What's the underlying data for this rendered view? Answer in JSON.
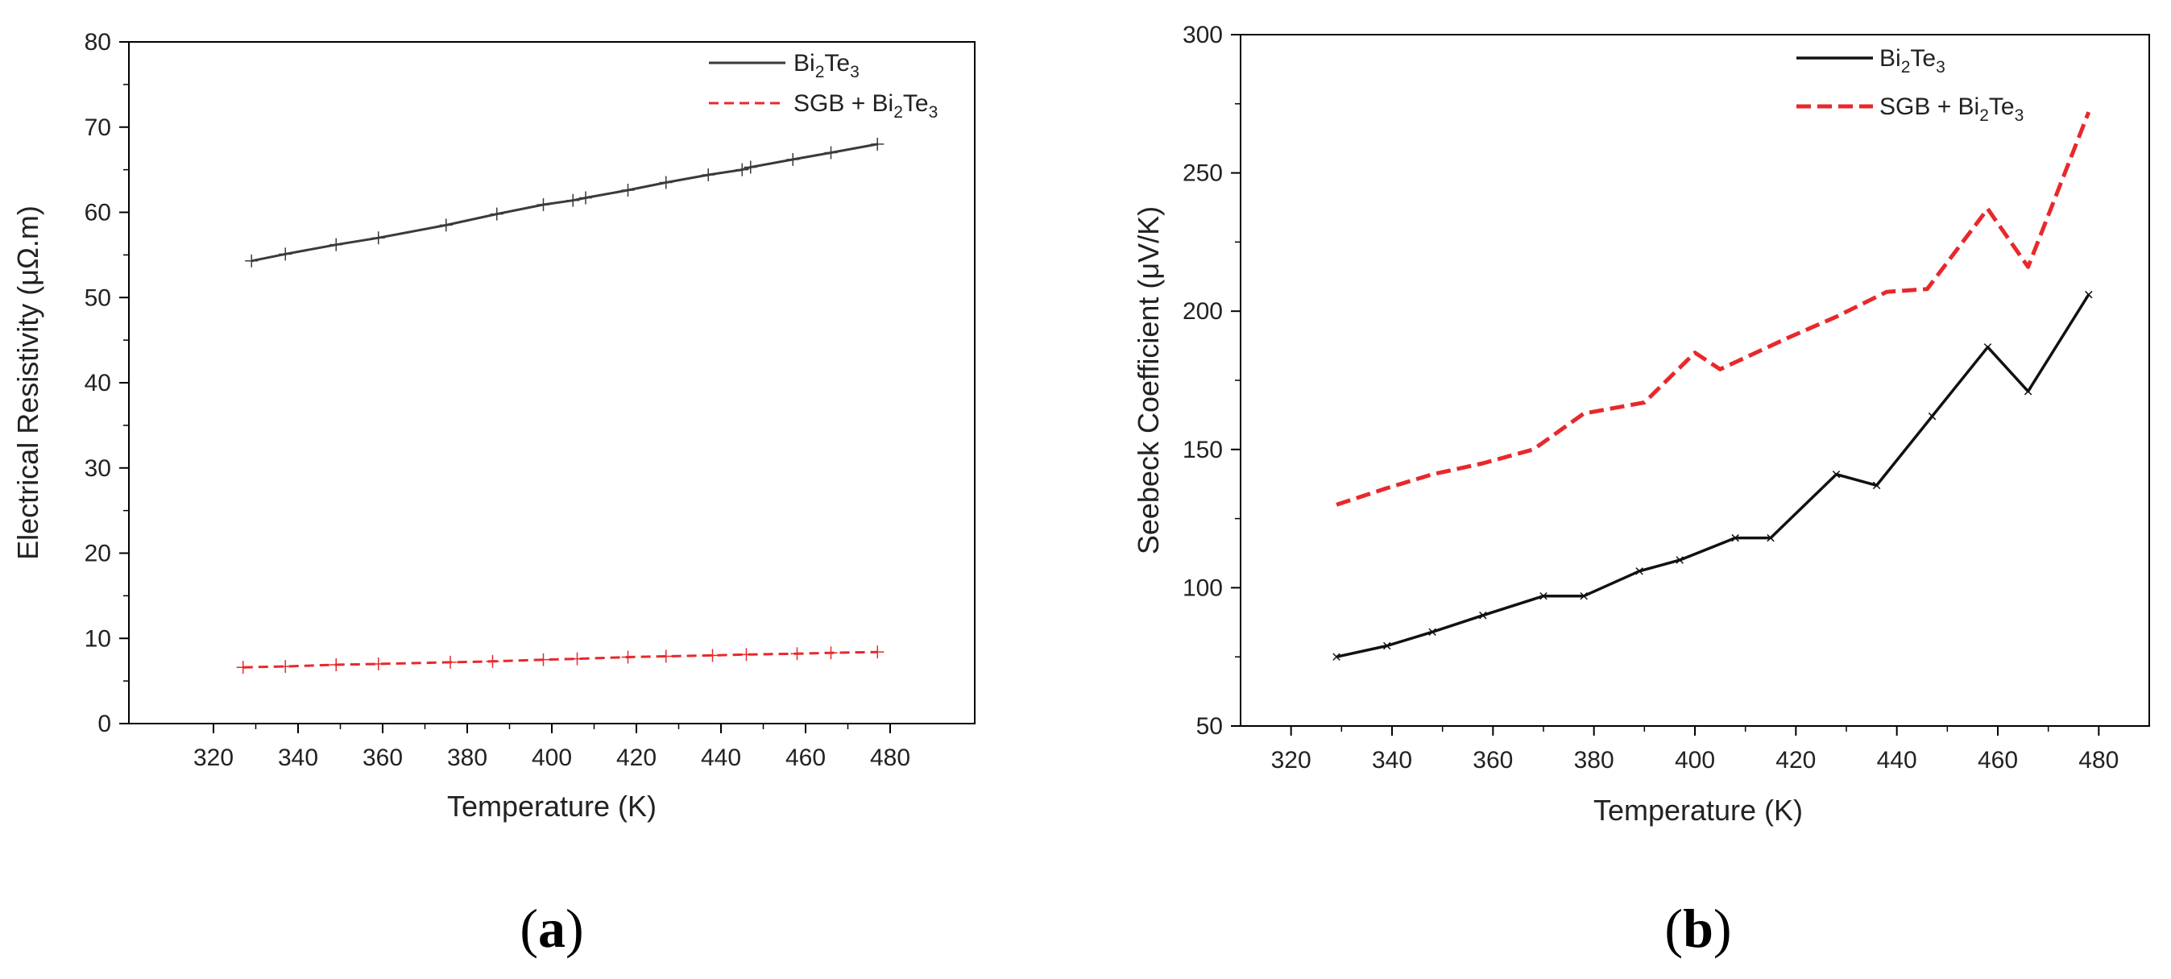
{
  "chart_data": [
    {
      "type": "line",
      "panel_label": {
        "open": "(",
        "letter": "a",
        "close": ")"
      },
      "xlabel": "Temperature (K)",
      "ylabel": "Electrical Resistivity (μΩ.m)",
      "xlim": [
        300,
        500
      ],
      "ylim": [
        0,
        80
      ],
      "xticks": [
        320,
        340,
        360,
        380,
        400,
        420,
        440,
        460,
        480
      ],
      "yticks": [
        0,
        10,
        20,
        30,
        40,
        50,
        60,
        70,
        80
      ],
      "legend_position": "top-right",
      "series": [
        {
          "name": "Bi2Te3",
          "legend_parts": {
            "a": "Bi",
            "s1": "2",
            "b": "Te",
            "s2": "3"
          },
          "color": "#3a3a3a",
          "style": "solid",
          "x": [
            329,
            337,
            349,
            359,
            375,
            387,
            398,
            405,
            408,
            418,
            427,
            437,
            445,
            447,
            457,
            466,
            477
          ],
          "y": [
            54.3,
            55.1,
            56.2,
            57.0,
            58.5,
            59.8,
            60.9,
            61.4,
            61.7,
            62.6,
            63.5,
            64.4,
            65.0,
            65.3,
            66.2,
            67.0,
            68.0
          ]
        },
        {
          "name": "SGB + Bi2Te3",
          "legend_parts": {
            "a": "SGB + Bi",
            "s1": "2",
            "b": "Te",
            "s2": "3"
          },
          "color": "#e8282c",
          "style": "dashed",
          "x": [
            327,
            337,
            349,
            359,
            376,
            386,
            398,
            406,
            418,
            427,
            438,
            446,
            458,
            466,
            477
          ],
          "y": [
            6.6,
            6.7,
            6.9,
            7.0,
            7.2,
            7.3,
            7.5,
            7.6,
            7.8,
            7.9,
            8.0,
            8.1,
            8.2,
            8.3,
            8.4
          ]
        }
      ]
    },
    {
      "type": "line",
      "panel_label": {
        "open": "(",
        "letter": "b",
        "close": ")"
      },
      "xlabel": "Temperature (K)",
      "ylabel": "Seebeck Coefficient (μV/K)",
      "xlim": [
        310,
        490
      ],
      "ylim": [
        50,
        300
      ],
      "xticks": [
        320,
        340,
        360,
        380,
        400,
        420,
        440,
        460,
        480
      ],
      "yticks": [
        50,
        100,
        150,
        200,
        250,
        300
      ],
      "legend_position": "top-right",
      "series": [
        {
          "name": "Bi2Te3",
          "legend_parts": {
            "a": "Bi",
            "s1": "2",
            "b": "Te",
            "s2": "3"
          },
          "color": "#111111",
          "style": "solid",
          "x": [
            329,
            339,
            348,
            358,
            370,
            378,
            389,
            397,
            408,
            415,
            428,
            436,
            447,
            458,
            466,
            478
          ],
          "y": [
            75,
            79,
            84,
            90,
            97,
            97,
            106,
            110,
            118,
            118,
            141,
            137,
            162,
            187,
            171,
            206
          ]
        },
        {
          "name": "SGB + Bi2Te3",
          "legend_parts": {
            "a": "SGB + Bi",
            "s1": "2",
            "b": "Te",
            "s2": "3"
          },
          "color": "#e8282c",
          "style": "dashed",
          "x": [
            329,
            339,
            348,
            358,
            368,
            378,
            390,
            400,
            405,
            418,
            428,
            438,
            446,
            458,
            466,
            478
          ],
          "y": [
            130,
            136,
            141,
            145,
            150,
            163,
            167,
            185,
            179,
            190,
            198,
            207,
            208,
            237,
            216,
            272
          ]
        }
      ]
    }
  ]
}
